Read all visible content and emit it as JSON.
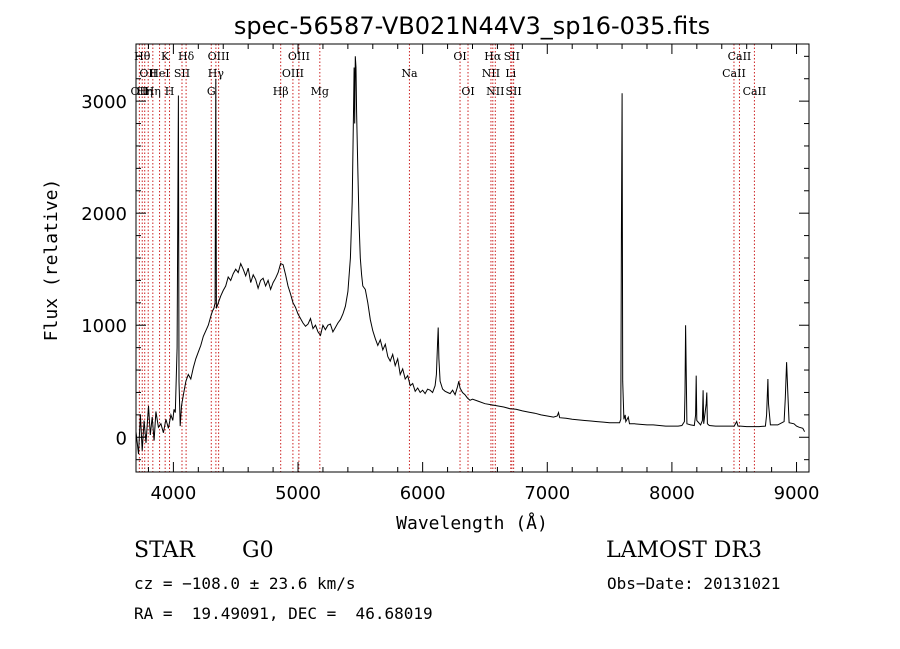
{
  "chart_data": {
    "type": "line",
    "title": "spec-56587-VB021N44V3_sp16-035.fits",
    "xlabel": "Wavelength (Å)",
    "ylabel": "Flux (relative)",
    "xlim": [
      3700,
      9100
    ],
    "ylim": [
      -310,
      3510
    ],
    "xticks": [
      4000,
      5000,
      6000,
      7000,
      8000,
      9000
    ],
    "yticks": [
      0,
      1000,
      2000,
      3000
    ],
    "xtick_labels": [
      "4000",
      "5000",
      "6000",
      "7000",
      "8000",
      "9000"
    ],
    "ytick_labels": [
      "0",
      "1000",
      "2000",
      "3000"
    ],
    "spectrum": [
      [
        3700,
        50
      ],
      [
        3720,
        -150
      ],
      [
        3735,
        200
      ],
      [
        3750,
        -120
      ],
      [
        3765,
        150
      ],
      [
        3780,
        -50
      ],
      [
        3800,
        280
      ],
      [
        3815,
        20
      ],
      [
        3830,
        180
      ],
      [
        3845,
        -30
      ],
      [
        3860,
        230
      ],
      [
        3880,
        90
      ],
      [
        3900,
        120
      ],
      [
        3920,
        40
      ],
      [
        3940,
        160
      ],
      [
        3960,
        80
      ],
      [
        3980,
        200
      ],
      [
        3995,
        150
      ],
      [
        4005,
        250
      ],
      [
        4015,
        220
      ],
      [
        4030,
        800
      ],
      [
        4040,
        3050
      ],
      [
        4045,
        500
      ],
      [
        4055,
        100
      ],
      [
        4065,
        280
      ],
      [
        4080,
        380
      ],
      [
        4100,
        500
      ],
      [
        4120,
        560
      ],
      [
        4140,
        520
      ],
      [
        4160,
        620
      ],
      [
        4180,
        700
      ],
      [
        4200,
        760
      ],
      [
        4220,
        820
      ],
      [
        4240,
        900
      ],
      [
        4260,
        950
      ],
      [
        4280,
        1000
      ],
      [
        4300,
        1080
      ],
      [
        4315,
        1130
      ],
      [
        4325,
        1150
      ],
      [
        4335,
        1200
      ],
      [
        4340,
        3200
      ],
      [
        4345,
        1150
      ],
      [
        4360,
        1200
      ],
      [
        4380,
        1260
      ],
      [
        4400,
        1310
      ],
      [
        4420,
        1350
      ],
      [
        4440,
        1430
      ],
      [
        4460,
        1400
      ],
      [
        4480,
        1460
      ],
      [
        4500,
        1500
      ],
      [
        4520,
        1470
      ],
      [
        4540,
        1550
      ],
      [
        4560,
        1500
      ],
      [
        4580,
        1440
      ],
      [
        4600,
        1510
      ],
      [
        4620,
        1380
      ],
      [
        4640,
        1450
      ],
      [
        4660,
        1410
      ],
      [
        4680,
        1330
      ],
      [
        4700,
        1400
      ],
      [
        4720,
        1420
      ],
      [
        4740,
        1350
      ],
      [
        4760,
        1400
      ],
      [
        4780,
        1320
      ],
      [
        4800,
        1380
      ],
      [
        4820,
        1420
      ],
      [
        4840,
        1470
      ],
      [
        4860,
        1550
      ],
      [
        4880,
        1540
      ],
      [
        4900,
        1450
      ],
      [
        4920,
        1350
      ],
      [
        4940,
        1280
      ],
      [
        4960,
        1200
      ],
      [
        4980,
        1160
      ],
      [
        5000,
        1100
      ],
      [
        5020,
        1060
      ],
      [
        5040,
        1020
      ],
      [
        5060,
        990
      ],
      [
        5080,
        1010
      ],
      [
        5100,
        1060
      ],
      [
        5120,
        970
      ],
      [
        5140,
        1000
      ],
      [
        5160,
        940
      ],
      [
        5180,
        910
      ],
      [
        5200,
        1000
      ],
      [
        5220,
        960
      ],
      [
        5240,
        1000
      ],
      [
        5260,
        1010
      ],
      [
        5280,
        940
      ],
      [
        5300,
        980
      ],
      [
        5320,
        1020
      ],
      [
        5340,
        1050
      ],
      [
        5360,
        1100
      ],
      [
        5380,
        1170
      ],
      [
        5400,
        1300
      ],
      [
        5420,
        1600
      ],
      [
        5435,
        2100
      ],
      [
        5445,
        2900
      ],
      [
        5450,
        3300
      ],
      [
        5455,
        2800
      ],
      [
        5460,
        3400
      ],
      [
        5465,
        3300
      ],
      [
        5470,
        2900
      ],
      [
        5480,
        2400
      ],
      [
        5490,
        1900
      ],
      [
        5500,
        1600
      ],
      [
        5510,
        1450
      ],
      [
        5520,
        1350
      ],
      [
        5540,
        1320
      ],
      [
        5560,
        1200
      ],
      [
        5580,
        1050
      ],
      [
        5600,
        950
      ],
      [
        5620,
        880
      ],
      [
        5640,
        820
      ],
      [
        5660,
        870
      ],
      [
        5680,
        780
      ],
      [
        5700,
        830
      ],
      [
        5720,
        720
      ],
      [
        5740,
        680
      ],
      [
        5760,
        740
      ],
      [
        5780,
        640
      ],
      [
        5800,
        700
      ],
      [
        5820,
        560
      ],
      [
        5840,
        610
      ],
      [
        5860,
        520
      ],
      [
        5880,
        550
      ],
      [
        5900,
        460
      ],
      [
        5920,
        480
      ],
      [
        5940,
        410
      ],
      [
        5960,
        440
      ],
      [
        5980,
        400
      ],
      [
        6000,
        420
      ],
      [
        6020,
        390
      ],
      [
        6040,
        430
      ],
      [
        6060,
        420
      ],
      [
        6080,
        400
      ],
      [
        6100,
        460
      ],
      [
        6110,
        560
      ],
      [
        6120,
        850
      ],
      [
        6125,
        980
      ],
      [
        6130,
        700
      ],
      [
        6140,
        500
      ],
      [
        6160,
        430
      ],
      [
        6180,
        410
      ],
      [
        6200,
        400
      ],
      [
        6220,
        390
      ],
      [
        6240,
        420
      ],
      [
        6260,
        380
      ],
      [
        6280,
        450
      ],
      [
        6290,
        500
      ],
      [
        6300,
        440
      ],
      [
        6320,
        400
      ],
      [
        6340,
        380
      ],
      [
        6360,
        350
      ],
      [
        6380,
        330
      ],
      [
        6400,
        340
      ],
      [
        6450,
        320
      ],
      [
        6500,
        300
      ],
      [
        6550,
        290
      ],
      [
        6600,
        280
      ],
      [
        6650,
        270
      ],
      [
        6700,
        255
      ],
      [
        6750,
        250
      ],
      [
        6800,
        235
      ],
      [
        6850,
        225
      ],
      [
        6900,
        215
      ],
      [
        6950,
        200
      ],
      [
        7000,
        190
      ],
      [
        7050,
        180
      ],
      [
        7080,
        190
      ],
      [
        7090,
        220
      ],
      [
        7100,
        175
      ],
      [
        7150,
        170
      ],
      [
        7200,
        160
      ],
      [
        7250,
        155
      ],
      [
        7300,
        150
      ],
      [
        7350,
        145
      ],
      [
        7400,
        140
      ],
      [
        7450,
        135
      ],
      [
        7500,
        130
      ],
      [
        7550,
        130
      ],
      [
        7580,
        130
      ],
      [
        7590,
        160
      ],
      [
        7595,
        1800
      ],
      [
        7600,
        3070
      ],
      [
        7605,
        500
      ],
      [
        7615,
        160
      ],
      [
        7625,
        200
      ],
      [
        7630,
        140
      ],
      [
        7650,
        180
      ],
      [
        7660,
        120
      ],
      [
        7700,
        120
      ],
      [
        7750,
        115
      ],
      [
        7800,
        110
      ],
      [
        7850,
        110
      ],
      [
        7900,
        105
      ],
      [
        7950,
        100
      ],
      [
        8000,
        100
      ],
      [
        8050,
        100
      ],
      [
        8080,
        105
      ],
      [
        8100,
        140
      ],
      [
        8105,
        400
      ],
      [
        8110,
        1000
      ],
      [
        8115,
        600
      ],
      [
        8120,
        120
      ],
      [
        8150,
        110
      ],
      [
        8180,
        105
      ],
      [
        8190,
        200
      ],
      [
        8195,
        550
      ],
      [
        8200,
        150
      ],
      [
        8230,
        110
      ],
      [
        8245,
        150
      ],
      [
        8250,
        420
      ],
      [
        8255,
        120
      ],
      [
        8275,
        300
      ],
      [
        8280,
        400
      ],
      [
        8285,
        120
      ],
      [
        8300,
        105
      ],
      [
        8350,
        100
      ],
      [
        8400,
        100
      ],
      [
        8450,
        100
      ],
      [
        8500,
        100
      ],
      [
        8520,
        140
      ],
      [
        8530,
        100
      ],
      [
        8550,
        100
      ],
      [
        8600,
        95
      ],
      [
        8650,
        95
      ],
      [
        8700,
        95
      ],
      [
        8750,
        100
      ],
      [
        8760,
        200
      ],
      [
        8770,
        520
      ],
      [
        8775,
        300
      ],
      [
        8790,
        110
      ],
      [
        8850,
        110
      ],
      [
        8900,
        140
      ],
      [
        8910,
        350
      ],
      [
        8920,
        670
      ],
      [
        8930,
        400
      ],
      [
        8940,
        130
      ],
      [
        8980,
        120
      ],
      [
        9000,
        100
      ],
      [
        9020,
        90
      ],
      [
        9050,
        80
      ],
      [
        9065,
        50
      ]
    ],
    "lines": [
      {
        "wavelength": 3727,
        "label": "OII",
        "row": 2
      },
      {
        "wavelength": 3750,
        "label": "Hθ",
        "row": 0
      },
      {
        "wavelength": 3770,
        "label": "Hη",
        "row": 2
      },
      {
        "wavelength": 3798,
        "label": "OII",
        "row": 1
      },
      {
        "wavelength": 3835,
        "label": "Hη",
        "row": 2
      },
      {
        "wavelength": 3889,
        "label": "HeI",
        "row": 1
      },
      {
        "wavelength": 3934,
        "label": "K",
        "row": 0
      },
      {
        "wavelength": 3969,
        "label": "H",
        "row": 2
      },
      {
        "wavelength": 4069,
        "label": "SII",
        "row": 1
      },
      {
        "wavelength": 4102,
        "label": "Hδ",
        "row": 0
      },
      {
        "wavelength": 4304,
        "label": "G",
        "row": 2
      },
      {
        "wavelength": 4341,
        "label": "Hγ",
        "row": 1
      },
      {
        "wavelength": 4363,
        "label": "OIII",
        "row": 0
      },
      {
        "wavelength": 4861,
        "label": "Hβ",
        "row": 2
      },
      {
        "wavelength": 4959,
        "label": "OIII",
        "row": 1
      },
      {
        "wavelength": 5007,
        "label": "OIII",
        "row": 0
      },
      {
        "wavelength": 5175,
        "label": "Mg",
        "row": 2
      },
      {
        "wavelength": 5894,
        "label": "Na",
        "row": 1
      },
      {
        "wavelength": 6300,
        "label": "OI",
        "row": 0
      },
      {
        "wavelength": 6364,
        "label": "OI",
        "row": 2
      },
      {
        "wavelength": 6548,
        "label": "NII",
        "row": 1
      },
      {
        "wavelength": 6563,
        "label": "Hα",
        "row": 0
      },
      {
        "wavelength": 6583,
        "label": "NII",
        "row": 2
      },
      {
        "wavelength": 6707,
        "label": "Li",
        "row": 1
      },
      {
        "wavelength": 6716,
        "label": "SII",
        "row": 0
      },
      {
        "wavelength": 6730,
        "label": "SII",
        "row": 2
      },
      {
        "wavelength": 8498,
        "label": "CaII",
        "row": 1
      },
      {
        "wavelength": 8542,
        "label": "CaII",
        "row": 0
      },
      {
        "wavelength": 8662,
        "label": "CaII",
        "row": 2
      }
    ]
  },
  "info": {
    "class": "STAR",
    "subclass": "G0",
    "survey": "LAMOST DR3",
    "cz": "cz = −108.0 ± 23.6 km/s",
    "obs_date": "Obs−Date: 20131021",
    "ra_dec": "RA =  19.49091, DEC =  46.68019"
  },
  "colors": {
    "line_marker": "#cc2222",
    "spectrum": "#000000"
  }
}
